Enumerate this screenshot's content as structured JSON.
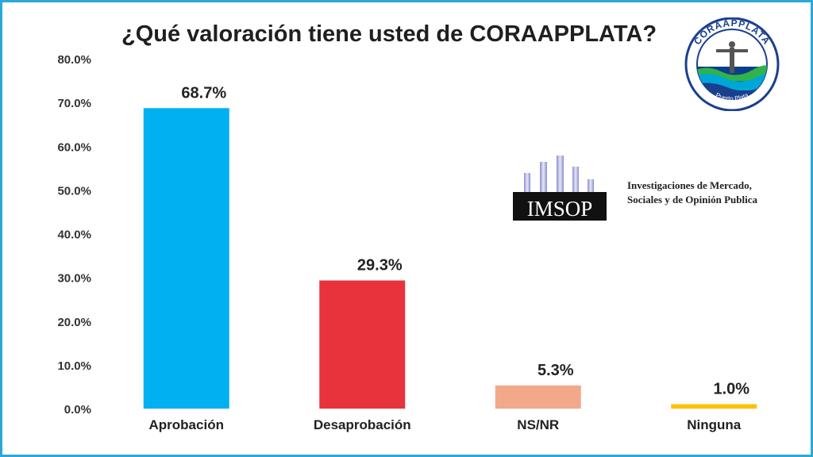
{
  "chart_data": {
    "type": "bar",
    "title": "¿Qué valoración tiene usted de CORAAPPLATA?",
    "categories": [
      "Aprobación",
      "Desaprobación",
      "NS/NR",
      "Ninguna"
    ],
    "values": [
      68.7,
      29.3,
      5.3,
      1.0
    ],
    "value_labels": [
      "68.7%",
      "29.3%",
      "5.3%",
      "1.0%"
    ],
    "colors": [
      "#00b0f0",
      "#e8333c",
      "#f2a98a",
      "#ffc000"
    ],
    "ylim": [
      0,
      80
    ],
    "yticks": [
      0,
      10,
      20,
      30,
      40,
      50,
      60,
      70,
      80
    ],
    "ytick_labels": [
      "0.0%",
      "10.0%",
      "20.0%",
      "30.0%",
      "40.0%",
      "50.0%",
      "60.0%",
      "70.0%",
      "80.0%"
    ],
    "xlabel": "",
    "ylabel": "",
    "grid": false,
    "legend": "none"
  },
  "logos": {
    "coraapplata": {
      "name": "CORAAPPLATA",
      "subtitle": "Puerto Plata",
      "colors": {
        "ring": "#1a3f8f",
        "sea": "#00a6d6",
        "green": "#2fb34a"
      }
    },
    "imsop": {
      "name": "IMSOP",
      "tagline_line1": "Investigaciones de Mercado,",
      "tagline_line2": "Sociales y de Opinión Publica"
    }
  },
  "frame_color": "#2aa8d8"
}
